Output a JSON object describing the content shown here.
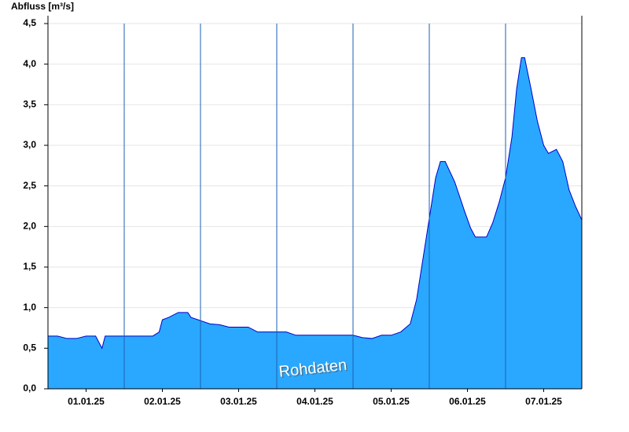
{
  "chart_data": {
    "type": "area",
    "ylabel": "Abfluss [m³/s]",
    "annotation": "Rohdaten",
    "color": "#2aa8ff",
    "line_color": "#0000c8",
    "grid": true,
    "x": [
      0,
      3,
      6,
      9,
      12,
      15,
      17,
      18,
      21,
      24,
      27,
      30,
      33,
      35,
      36,
      38,
      41,
      44,
      45,
      48,
      51,
      54,
      57,
      60,
      63,
      66,
      69,
      72,
      75,
      78,
      84,
      90,
      96,
      99,
      102,
      105,
      108,
      111,
      114,
      116,
      118,
      120,
      122,
      123.5,
      125,
      128,
      131,
      133,
      134.5,
      138,
      140,
      142,
      144,
      146,
      147.5,
      149,
      150,
      152,
      154,
      156,
      157.5,
      160,
      162,
      164,
      166,
      168
    ],
    "values": [
      0.65,
      0.65,
      0.62,
      0.62,
      0.65,
      0.65,
      0.5,
      0.65,
      0.65,
      0.65,
      0.65,
      0.65,
      0.65,
      0.7,
      0.85,
      0.88,
      0.94,
      0.94,
      0.88,
      0.84,
      0.8,
      0.79,
      0.76,
      0.76,
      0.76,
      0.7,
      0.7,
      0.7,
      0.7,
      0.66,
      0.66,
      0.66,
      0.66,
      0.63,
      0.62,
      0.66,
      0.66,
      0.7,
      0.8,
      1.1,
      1.6,
      2.1,
      2.6,
      2.8,
      2.8,
      2.55,
      2.2,
      1.98,
      1.87,
      1.87,
      2.05,
      2.3,
      2.6,
      3.1,
      3.7,
      4.08,
      4.08,
      3.7,
      3.3,
      3.0,
      2.9,
      2.95,
      2.8,
      2.45,
      2.25,
      2.08
    ],
    "xlim": [
      0,
      168
    ],
    "xticks": [
      {
        "value": 12,
        "label": "01.01.25"
      },
      {
        "value": 36,
        "label": "02.01.25"
      },
      {
        "value": 60,
        "label": "03.01.25"
      },
      {
        "value": 84,
        "label": "04.01.25"
      },
      {
        "value": 108,
        "label": "05.01.25"
      },
      {
        "value": 132,
        "label": "06.01.25"
      },
      {
        "value": 156,
        "label": "07.01.25"
      }
    ],
    "ylim": [
      0,
      4.5
    ],
    "yticks": [
      {
        "value": 0,
        "label": "0,0"
      },
      {
        "value": 0.5,
        "label": "0,5"
      },
      {
        "value": 1,
        "label": "1,0"
      },
      {
        "value": 1.5,
        "label": "1,5"
      },
      {
        "value": 2,
        "label": "2,0"
      },
      {
        "value": 2.5,
        "label": "2,5"
      },
      {
        "value": 3,
        "label": "3,0"
      },
      {
        "value": 3.5,
        "label": "3,5"
      },
      {
        "value": 4,
        "label": "4,0"
      },
      {
        "value": 4.5,
        "label": "4,5"
      }
    ]
  }
}
